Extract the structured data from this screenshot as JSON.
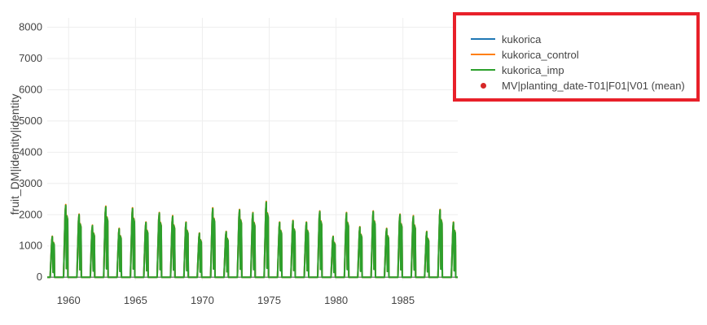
{
  "chart_data": {
    "type": "line",
    "title": "",
    "xlabel": "",
    "ylabel": "fruit_DM|identity|identity",
    "xlim": [
      1958.4,
      1989.1
    ],
    "ylim": [
      -100,
      8300
    ],
    "x_ticks": [
      1960,
      1965,
      1970,
      1975,
      1980,
      1985
    ],
    "x_tick_labels": [
      "1960",
      "1965",
      "1970",
      "1975",
      "1980",
      "1985"
    ],
    "y_ticks": [
      0,
      1000,
      2000,
      3000,
      4000,
      5000,
      6000,
      7000,
      8000
    ],
    "y_tick_labels": [
      "0",
      "1000",
      "2000",
      "3000",
      "4000",
      "5000",
      "6000",
      "7000",
      "8000"
    ],
    "grid": true,
    "legend_position": "top-right",
    "season_peaks": {
      "x": [
        1958.8,
        1959.8,
        1960.8,
        1961.8,
        1962.8,
        1963.8,
        1964.8,
        1965.8,
        1966.8,
        1967.8,
        1968.8,
        1969.8,
        1970.8,
        1971.8,
        1972.8,
        1973.8,
        1974.8,
        1975.8,
        1976.8,
        1977.8,
        1978.8,
        1979.8,
        1980.8,
        1981.8,
        1982.8,
        1983.8,
        1984.8,
        1985.8,
        1986.8,
        1987.8,
        1988.8
      ],
      "peak": [
        1300,
        2300,
        2000,
        1650,
        2250,
        1550,
        2200,
        1750,
        2050,
        1950,
        1750,
        1400,
        2200,
        1450,
        2150,
        2050,
        2400,
        1750,
        1800,
        1750,
        2100,
        1300,
        2050,
        1600,
        2100,
        1550,
        2000,
        1950,
        1450,
        2150,
        1750
      ]
    },
    "series": [
      {
        "name": "kukorica",
        "color": "#1f77b4",
        "mode": "lines"
      },
      {
        "name": "kukorica_control",
        "color": "#ff7f0e",
        "mode": "lines"
      },
      {
        "name": "kukorica_imp",
        "color": "#2ca02c",
        "mode": "lines"
      },
      {
        "name": "MV|planting_date-T01|F01|V01 (mean)",
        "color": "#d62728",
        "mode": "markers"
      }
    ]
  }
}
